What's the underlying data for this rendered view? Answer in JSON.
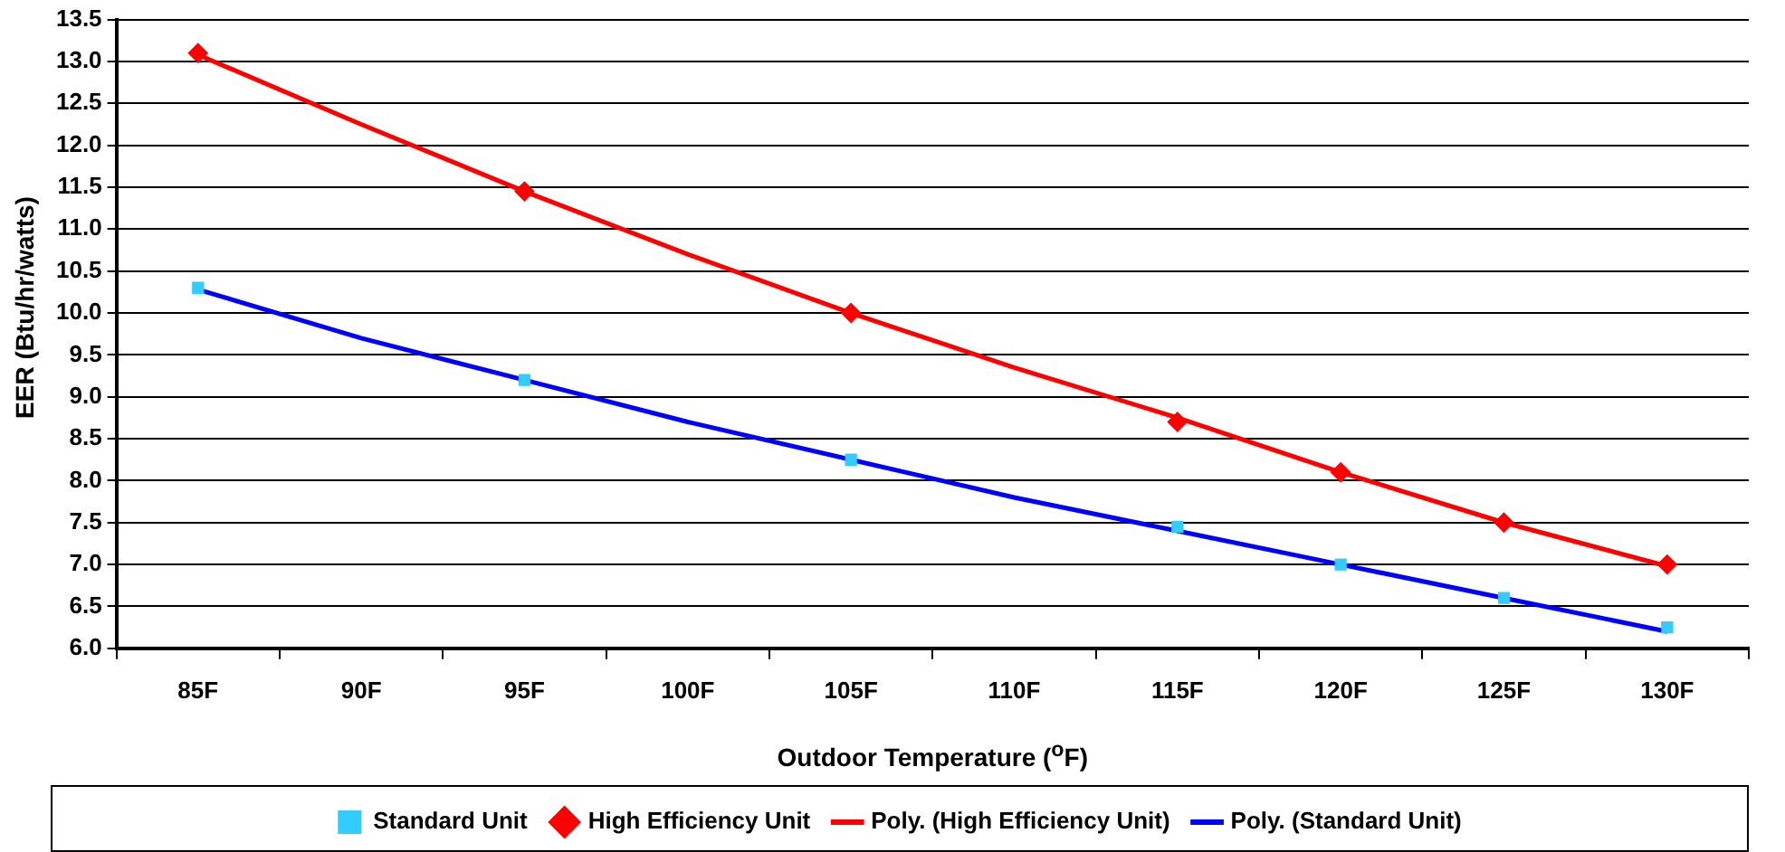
{
  "chart_data": {
    "type": "scatter",
    "xlabel": "Outdoor Temperature ($^{o}$F)",
    "ylabel": "EER (Btu/hr/watts)",
    "categories": [
      "85F",
      "90F",
      "95F",
      "100F",
      "105F",
      "110F",
      "115F",
      "120F",
      "125F",
      "130F"
    ],
    "ylim": [
      6,
      13.5
    ],
    "yticks": [
      {
        "value": 6,
        "label": "6.0"
      },
      6.5,
      {
        "value": 7,
        "label": "7.0"
      },
      7.5,
      {
        "value": 8,
        "label": "8.0"
      },
      8.5,
      {
        "value": 9,
        "label": "9.0"
      },
      9.5,
      {
        "value": 10,
        "label": "10.0"
      },
      10.5,
      {
        "value": 11,
        "label": "11.0"
      },
      11.5,
      {
        "value": 12,
        "label": "12.0"
      },
      12.5,
      {
        "value": 13,
        "label": "13.0"
      },
      13.5
    ],
    "grid": "y",
    "legend": "bottom",
    "series": [
      {
        "name": "Standard Unit",
        "marker": "square",
        "color": "#33ccff",
        "x": [
          "85F",
          "95F",
          "105F",
          "115F",
          "120F",
          "125F",
          "130F"
        ],
        "values": [
          10.3,
          9.2,
          8.25,
          7.45,
          7.0,
          6.6,
          6.25
        ]
      },
      {
        "name": "High Efficiency Unit",
        "marker": "diamond",
        "color": "#ff0000",
        "x": [
          "85F",
          "95F",
          "105F",
          "115F",
          "120F",
          "125F",
          "130F"
        ],
        "values": [
          13.1,
          11.45,
          10.0,
          8.7,
          8.1,
          7.5,
          7.0
        ]
      },
      {
        "name": "Poly. (High Efficiency Unit)",
        "type": "line",
        "marker": "none",
        "color": "#ff0000",
        "x": [
          "85F",
          "90F",
          "95F",
          "100F",
          "105F",
          "110F",
          "115F",
          "120F",
          "125F",
          "130F"
        ],
        "values": [
          13.08,
          12.25,
          11.45,
          10.7,
          10.0,
          9.35,
          8.75,
          8.1,
          7.5,
          6.98
        ]
      },
      {
        "name": "Poly. (Standard Unit)",
        "type": "line",
        "marker": "none",
        "color": "#0000ff",
        "x": [
          "85F",
          "90F",
          "95F",
          "100F",
          "105F",
          "110F",
          "115F",
          "120F",
          "125F",
          "130F"
        ],
        "values": [
          10.28,
          9.7,
          9.2,
          8.7,
          8.25,
          7.8,
          7.4,
          7.0,
          6.6,
          6.2
        ]
      }
    ]
  }
}
